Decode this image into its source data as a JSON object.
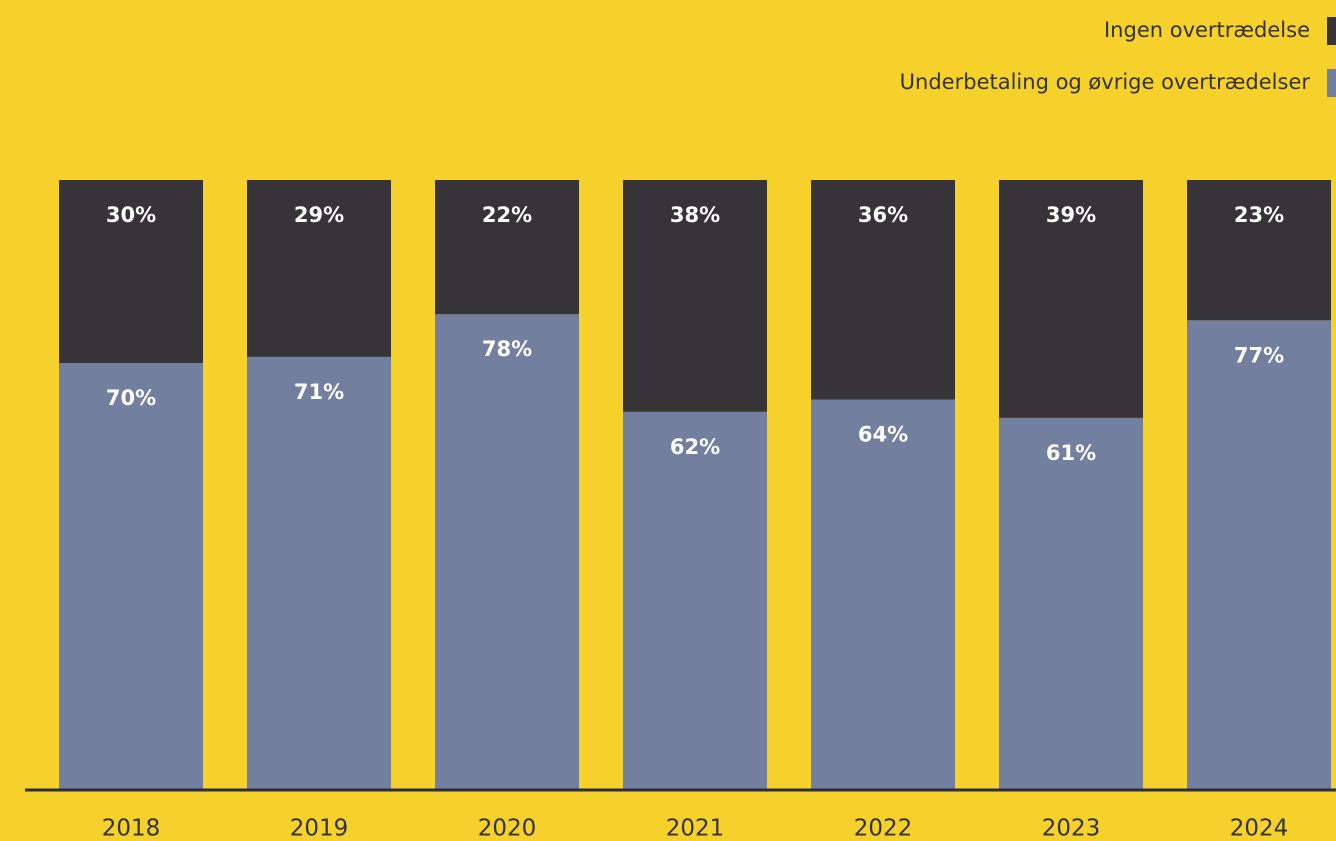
{
  "chart_data": {
    "type": "stacked_bar",
    "categories": [
      "2018",
      "2019",
      "2020",
      "2021",
      "2022",
      "2023",
      "2024"
    ],
    "series": [
      {
        "name": "Ingen overtrædelse",
        "color": "#363436",
        "values": [
          30,
          29,
          22,
          38,
          36,
          39,
          23
        ],
        "value_labels": [
          "30%",
          "29%",
          "22%",
          "38%",
          "36%",
          "39%",
          "23%"
        ]
      },
      {
        "name": "Underbetaling og øvrige overtrædelser",
        "color": "#737f9f",
        "values": [
          70,
          71,
          78,
          62,
          64,
          61,
          77
        ],
        "value_labels": [
          "70%",
          "71%",
          "78%",
          "62%",
          "64%",
          "61%",
          "77%"
        ]
      }
    ],
    "ylim": [
      0,
      100
    ]
  }
}
